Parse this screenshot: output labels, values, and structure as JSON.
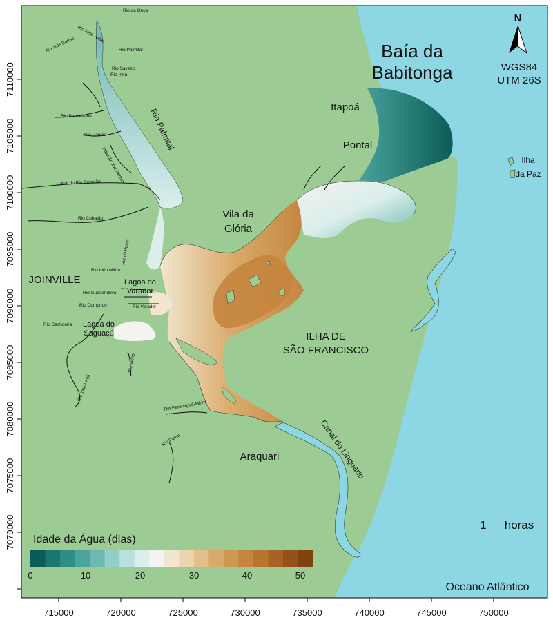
{
  "title": {
    "line1": "Baía da",
    "line2": "Babitonga"
  },
  "projection": {
    "line1": "WGS84",
    "line2": "UTM 26S"
  },
  "north_arrow": {
    "label": "N",
    "icon": "north-arrow-icon"
  },
  "time_stamp": {
    "value": "1",
    "unit": "horas"
  },
  "ocean_label": "Oceano Atlântico",
  "places": {
    "itapoa": "Itapoá",
    "pontal": "Pontal",
    "ilha_paz_1": "Ilha",
    "ilha_paz_2": "da Paz",
    "vila_gloria_1": "Vila da",
    "vila_gloria_2": "Glória",
    "joinville": "JOINVILLE",
    "lagoa_varador_1": "Lagoa do",
    "lagoa_varador_2": "Varador",
    "lagoa_saguacu_1": "Lagoa do",
    "lagoa_saguacu_2": "Saguaçú",
    "ilha_sf_1": "ILHA DE",
    "ilha_sf_2": "SÃO FRANCISCO",
    "araquari": "Araquari"
  },
  "rivers": {
    "onca": "Rio da Onça",
    "sete_voltas": "Rio Sete Voltas",
    "tres_barras": "Rio Três Barras",
    "palmital_small": "Rio Palmital",
    "saveiro": "Rio Saveiro",
    "iririu": "Rio Iririú",
    "pirabeiraba": "Rio Pirabeiraba",
    "canela": "Rio Canela",
    "ribeirao": "Ribeirão das Pedras",
    "palmital": "Rio Palmital",
    "canal_cubatao": "Canal do Rio Cubatão",
    "cubatao": "Rio Cubatão",
    "parati_n": "Rio do Parati",
    "iririu_mirim": "Rio Iririu Mirim",
    "guaxanduva": "Rio Guaxanduva",
    "comprido": "Rio Comprido",
    "varador": "Rio Varador",
    "cachoeira": "Rio Cachoeira",
    "itaum": "Rio Itaum-Açú",
    "velho": "Rio Velho",
    "paranagua_mirim": "Rio Paranaguá-Mirim",
    "parati": "Rio Parati",
    "canal_linguado": "Canal do Linguado"
  },
  "axes": {
    "x_ticks": [
      "715000",
      "720000",
      "725000",
      "730000",
      "735000",
      "740000",
      "745000",
      "750000"
    ],
    "y_ticks": [
      "7110000",
      "7105000",
      "7100000",
      "7095000",
      "7090000",
      "7085000",
      "7080000",
      "7075000",
      "7070000"
    ]
  },
  "legend": {
    "title": "Idade da Água (dias)",
    "ticks": [
      "0",
      "10",
      "20",
      "30",
      "40",
      "50"
    ],
    "colors": [
      "#0a5c57",
      "#1b7570",
      "#2f8d87",
      "#4aa39d",
      "#6db8b2",
      "#93cdc8",
      "#b8e0dc",
      "#dbeeec",
      "#f3f3ef",
      "#f2e6cf",
      "#ecd6ad",
      "#e3c089",
      "#d9ab6b",
      "#cf9752",
      "#c5853f",
      "#b97430",
      "#a96222",
      "#955117",
      "#804310"
    ]
  },
  "colors": {
    "land": "#9ccc94",
    "ocean": "#8dd6e3",
    "frame": "#000000"
  }
}
